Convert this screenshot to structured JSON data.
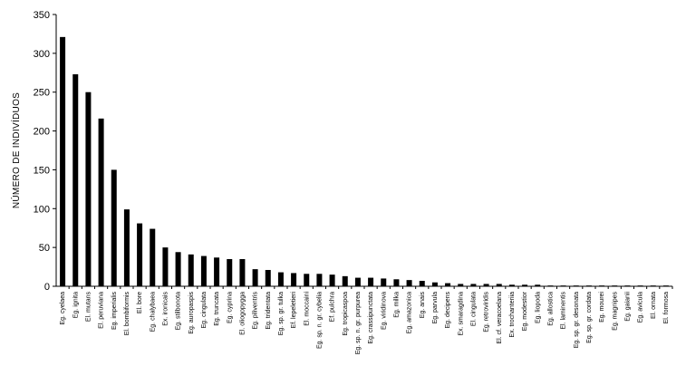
{
  "chart_data": {
    "type": "bar",
    "title": "",
    "xlabel": "",
    "ylabel": "NÚMERO DE INDIVÍDUOS",
    "ylim": [
      0,
      350
    ],
    "yticks": [
      0,
      50,
      100,
      150,
      200,
      250,
      300,
      350
    ],
    "grid": false,
    "legend": "none",
    "bar_color": "#000000",
    "axis_color": "#000000",
    "categories": [
      "Eg. cyelaea",
      "Eg. ignita",
      "El. mutans",
      "El. peruviana",
      "Eg. imperialis",
      "El. bombiformis",
      "El. bore",
      "Eg. chalybaea",
      "Ex. ironicais",
      "Eg. stilbonota",
      "Eg. auropaspis",
      "Eg. cingulata",
      "Eg. truncata",
      "Eg. cyprina",
      "El. oliogopygga",
      "Eg. piliventris",
      "Eg. tridentata",
      "Eg. sp. gr. tulka",
      "Ef. lepeletieri",
      "El. moccaini",
      "Eg. sp. n. gr. cybelia",
      "Ef. pulchra",
      "Eg. tropicaspoa",
      "Eg. sp. n. gr. purpurea",
      "Eg. crassipunctata",
      "Eg. viridinova",
      "Eg. milka",
      "Eg. amazonica",
      "Eg. anais",
      "Eg. parvula",
      "Eg. decipens",
      "Ex. smaragdina",
      "El. cingulata",
      "Eg. retroviridis",
      "El. cf. veracoelana",
      "Ex. trochanteriia",
      "Eg. modestior",
      "Eg. liopoda",
      "Eg. allostica",
      "El. laminentis",
      "Eg. sp. gr. desonata",
      "Eg. sp. gr. cordata",
      "Eg. mourei",
      "Eg. magnipes",
      "Eg. gaianii",
      "Eg. avicula",
      "El. ornata",
      "El. formosa"
    ],
    "values": [
      321,
      273,
      250,
      216,
      150,
      99,
      81,
      74,
      50,
      44,
      41,
      39,
      37,
      35,
      35,
      22,
      21,
      18,
      17,
      16,
      16,
      15,
      13,
      11,
      11,
      10,
      9,
      8,
      7,
      5,
      4,
      3,
      3,
      3,
      3,
      2,
      2,
      2,
      1,
      1,
      1,
      1,
      1,
      1,
      1,
      1,
      1,
      1
    ]
  }
}
